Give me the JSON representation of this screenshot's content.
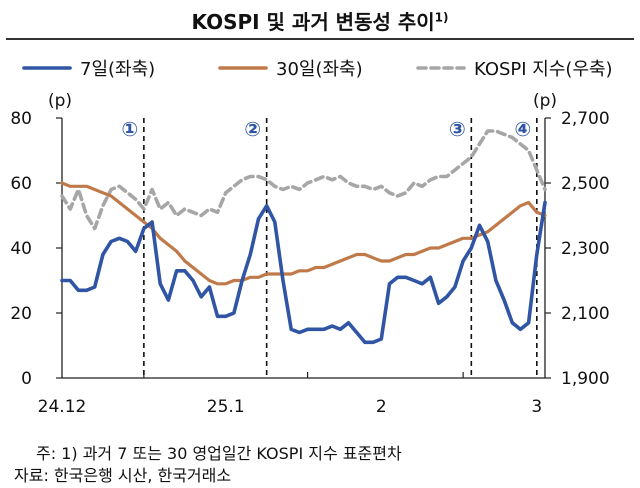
{
  "title": "KOSPI 및 과거 변동성 추이",
  "title_sup": "1)",
  "notes": [
    "주: 1) 과거 7 또는 30 영업일간 KOSPI 지수 표준편차",
    "자료: 한국은행 시산, 한국거래소"
  ],
  "colors": {
    "s7": "#2f55a4",
    "s30": "#c07a4a",
    "kospi": "#a6a6a6"
  },
  "chart_data": {
    "type": "line",
    "legend_position": "top",
    "left_axis": {
      "unit": "(p)",
      "ylim": [
        0,
        80
      ],
      "ticks": [
        "0",
        "20",
        "40",
        "60",
        "80"
      ]
    },
    "right_axis": {
      "unit": "(p)",
      "ylim": [
        1900,
        2700
      ],
      "ticks": [
        "1,900",
        "2,100",
        "2,300",
        "2,500",
        "2,700"
      ]
    },
    "x_tick_labels": [
      {
        "label": "24.12",
        "index": 0
      },
      {
        "label": "25.1",
        "index": 20
      },
      {
        "label": "2",
        "index": 39
      },
      {
        "label": "3",
        "index": 58
      }
    ],
    "markers": [
      {
        "label": "①",
        "index": 10
      },
      {
        "label": "②",
        "index": 25
      },
      {
        "label": "③",
        "index": 50
      },
      {
        "label": "④",
        "index": 58
      }
    ],
    "series": [
      {
        "name": "7일(좌축)",
        "axis": "left",
        "style": "solid",
        "values": [
          30,
          30,
          27,
          27,
          28,
          38,
          42,
          43,
          42,
          39,
          46,
          48,
          29,
          24,
          33,
          33,
          30,
          25,
          28,
          19,
          19,
          20,
          30,
          38,
          49,
          53,
          48,
          30,
          15,
          14,
          15,
          15,
          15,
          16,
          15,
          17,
          14,
          11,
          11,
          12,
          29,
          31,
          31,
          30,
          29,
          31,
          23,
          25,
          28,
          36,
          40,
          47,
          42,
          30,
          24,
          17,
          15,
          17,
          38,
          54
        ]
      },
      {
        "name": "30일(좌축)",
        "axis": "left",
        "style": "solid",
        "values": [
          60,
          59,
          59,
          59,
          58,
          57,
          56,
          54,
          52,
          50,
          48,
          46,
          43,
          41,
          39,
          36,
          34,
          32,
          30,
          29,
          29,
          30,
          30,
          31,
          31,
          32,
          32,
          32,
          32,
          33,
          33,
          34,
          34,
          35,
          36,
          37,
          38,
          38,
          37,
          36,
          36,
          37,
          38,
          38,
          39,
          40,
          40,
          41,
          42,
          43,
          43,
          44,
          45,
          47,
          49,
          51,
          53,
          54,
          51,
          50
        ]
      },
      {
        "name": "KOSPI 지수(우축)",
        "axis": "right",
        "style": "dashed",
        "values": [
          2460,
          2420,
          2480,
          2400,
          2360,
          2430,
          2480,
          2490,
          2470,
          2450,
          2420,
          2480,
          2420,
          2440,
          2400,
          2420,
          2410,
          2400,
          2420,
          2410,
          2470,
          2490,
          2510,
          2520,
          2520,
          2510,
          2490,
          2480,
          2490,
          2480,
          2500,
          2510,
          2520,
          2510,
          2520,
          2500,
          2490,
          2490,
          2480,
          2490,
          2470,
          2460,
          2470,
          2500,
          2490,
          2510,
          2520,
          2520,
          2540,
          2560,
          2580,
          2620,
          2660,
          2660,
          2650,
          2640,
          2620,
          2600,
          2540,
          2480
        ]
      }
    ]
  }
}
